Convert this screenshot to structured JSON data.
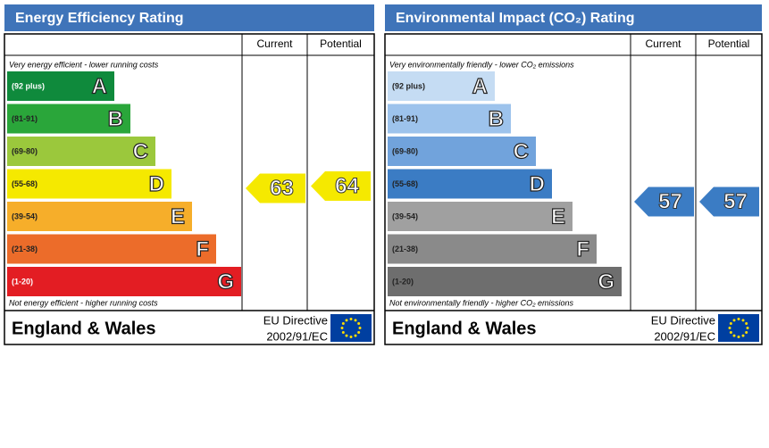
{
  "panels": [
    {
      "title": "Energy Efficiency Rating",
      "columns": [
        "Current",
        "Potential"
      ],
      "top_note": "Very energy efficient - lower running costs",
      "bottom_note": "Not energy efficient - higher running costs",
      "bands": [
        {
          "range": "(92 plus)",
          "letter": "A",
          "color": "#0f8a3c"
        },
        {
          "range": "(81-91)",
          "letter": "B",
          "color": "#2aa63a"
        },
        {
          "range": "(69-80)",
          "letter": "C",
          "color": "#9bc83c"
        },
        {
          "range": "(55-68)",
          "letter": "D",
          "color": "#f5e900"
        },
        {
          "range": "(39-54)",
          "letter": "E",
          "color": "#f6ae2a"
        },
        {
          "range": "(21-38)",
          "letter": "F",
          "color": "#ec6c2a"
        },
        {
          "range": "(1-20)",
          "letter": "G",
          "color": "#e31d23"
        }
      ],
      "current": 63,
      "potential": 64,
      "arrow_color": "#f5e900",
      "footer": {
        "region": "England & Wales",
        "directive": "EU Directive",
        "code": "2002/91/EC"
      }
    },
    {
      "title": "Environmental Impact (CO₂) Rating",
      "columns": [
        "Current",
        "Potential"
      ],
      "top_note": "Very environmentally friendly - lower CO₂ emissions",
      "bottom_note": "Not environmentally friendly - higher CO₂ emissions",
      "bands": [
        {
          "range": "(92 plus)",
          "letter": "A",
          "color": "#c5dcf3"
        },
        {
          "range": "(81-91)",
          "letter": "B",
          "color": "#9dc3ec"
        },
        {
          "range": "(69-80)",
          "letter": "C",
          "color": "#71a3dc"
        },
        {
          "range": "(55-68)",
          "letter": "D",
          "color": "#3b7cc4"
        },
        {
          "range": "(39-54)",
          "letter": "E",
          "color": "#a0a0a0"
        },
        {
          "range": "(21-38)",
          "letter": "F",
          "color": "#8a8a8a"
        },
        {
          "range": "(1-20)",
          "letter": "G",
          "color": "#6e6e6e"
        }
      ],
      "current": 57,
      "potential": 57,
      "arrow_color": "#3b7cc4",
      "footer": {
        "region": "England & Wales",
        "directive": "EU Directive",
        "code": "2002/91/EC"
      }
    }
  ]
}
